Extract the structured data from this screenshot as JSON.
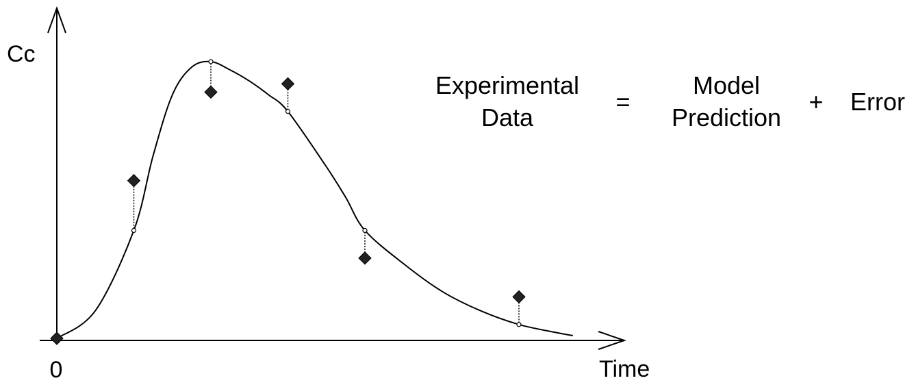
{
  "y_axis_label": "Cc",
  "x_axis_label": "Time",
  "origin_label": "0",
  "equation": {
    "term1": [
      "Experimental",
      "Data"
    ],
    "equals": "=",
    "term2": [
      "Model",
      "Prediction"
    ],
    "plus": "+",
    "term3": "Error"
  },
  "chart_data": {
    "type": "scatter",
    "observations": [
      {
        "time": 0,
        "observed": 0,
        "predicted": 0
      },
      {
        "time": 1,
        "observed": 0.57,
        "predicted": 0.39
      },
      {
        "time": 2,
        "observed": 0.89,
        "predicted": 1.0
      },
      {
        "time": 3,
        "observed": 0.92,
        "predicted": 0.82
      },
      {
        "time": 4,
        "observed": 0.29,
        "predicted": 0.39
      },
      {
        "time": 6,
        "observed": 0.15,
        "predicted": 0.05
      }
    ],
    "model_curve": [
      [
        0,
        0
      ],
      [
        0.5,
        0.1
      ],
      [
        1,
        0.39
      ],
      [
        1.25,
        0.66
      ],
      [
        1.5,
        0.88
      ],
      [
        1.75,
        0.98
      ],
      [
        2,
        1.0
      ],
      [
        2.25,
        0.97
      ],
      [
        2.5,
        0.93
      ],
      [
        2.75,
        0.88
      ],
      [
        3,
        0.82
      ],
      [
        3.5,
        0.62
      ],
      [
        3.75,
        0.51
      ],
      [
        4,
        0.39
      ],
      [
        4.5,
        0.27
      ],
      [
        5,
        0.17
      ],
      [
        5.5,
        0.1
      ],
      [
        6,
        0.05
      ],
      [
        6.5,
        0.02
      ],
      [
        6.7,
        0.01
      ]
    ],
    "xlim": [
      0,
      7.5
    ],
    "ylim": [
      0,
      1.0
    ],
    "grid": false
  }
}
